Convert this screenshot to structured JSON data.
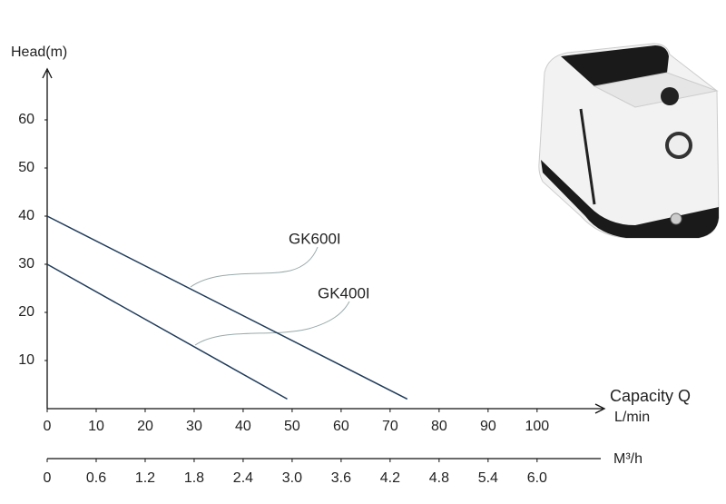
{
  "chart_data": {
    "type": "line",
    "y_label": "Head(m)",
    "x_label": "Capacity Q",
    "x_unit": "L/min",
    "x2_unit": "M³/h",
    "xlim": [
      0,
      113
    ],
    "ylim": [
      0,
      70
    ],
    "x2lim": [
      0,
      6.78
    ],
    "xticks": [
      0,
      10,
      20,
      30,
      40,
      50,
      60,
      70,
      80,
      90,
      100
    ],
    "yticks": [
      10,
      20,
      30,
      40,
      50,
      60
    ],
    "x2ticks": [
      0,
      0.6,
      1.2,
      1.8,
      2.4,
      {
        "value": 3,
        "label": "3.0"
      },
      3.6,
      4.2,
      4.8,
      5.4,
      {
        "value": 6,
        "label": "6.0"
      }
    ],
    "series": [
      {
        "name": "GK600I",
        "color": "#1f3b5a",
        "x": [
          0,
          73.5
        ],
        "values": [
          40,
          2
        ]
      },
      {
        "name": "GK400I",
        "color": "#1f3b5a",
        "x": [
          0,
          49
        ],
        "values": [
          30,
          2
        ]
      }
    ]
  }
}
